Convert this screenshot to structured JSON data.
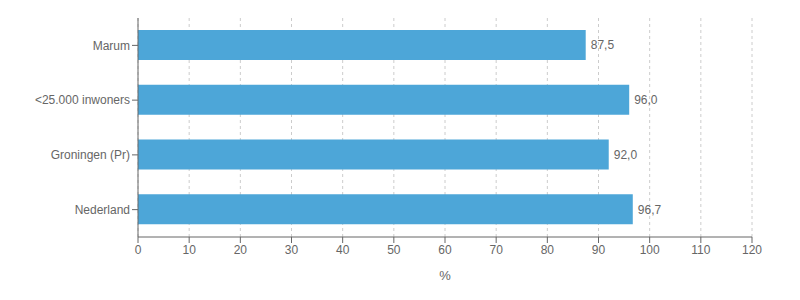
{
  "chart_data": {
    "type": "bar",
    "orientation": "horizontal",
    "categories": [
      "Nederland",
      "Groningen (Pr)",
      "<25.000 inwoners",
      "Marum"
    ],
    "values": [
      96.7,
      92.0,
      96.0,
      87.5
    ],
    "value_labels": [
      "96,7",
      "92,0",
      "96,0",
      "87,5"
    ],
    "data_labels": true,
    "color": "#4da6d8",
    "xlabel": "%",
    "xlim": [
      0,
      120
    ],
    "xticks": [
      0,
      10,
      20,
      30,
      40,
      50,
      60,
      70,
      80,
      90,
      100,
      110,
      120
    ],
    "grid": true
  }
}
